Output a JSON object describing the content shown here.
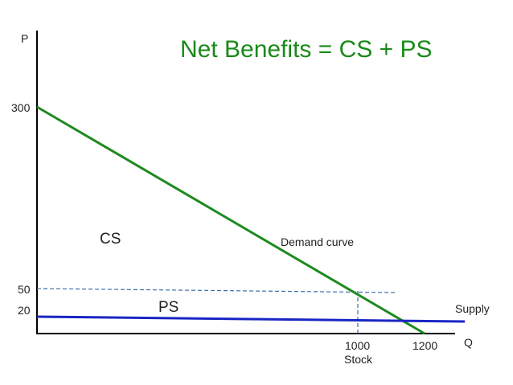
{
  "title": "Net Benefits = CS + PS",
  "colors": {
    "title": "#1a8a1a",
    "axis": "#000000",
    "demand": "#1e8a1e",
    "supply": "#1a25c4",
    "guide": "#3c6fa8",
    "text": "#222222"
  },
  "axes": {
    "y_label": "P",
    "x_label": "Q",
    "y_ticks": [
      "300",
      "50",
      "20"
    ],
    "x_ticks": [
      "1000",
      "1200"
    ],
    "x_tick_sublabel": "Stock"
  },
  "curves": {
    "demand_label": "Demand curve",
    "supply_label": "Supply"
  },
  "areas": {
    "consumer_surplus": "CS",
    "producer_surplus": "PS"
  }
}
